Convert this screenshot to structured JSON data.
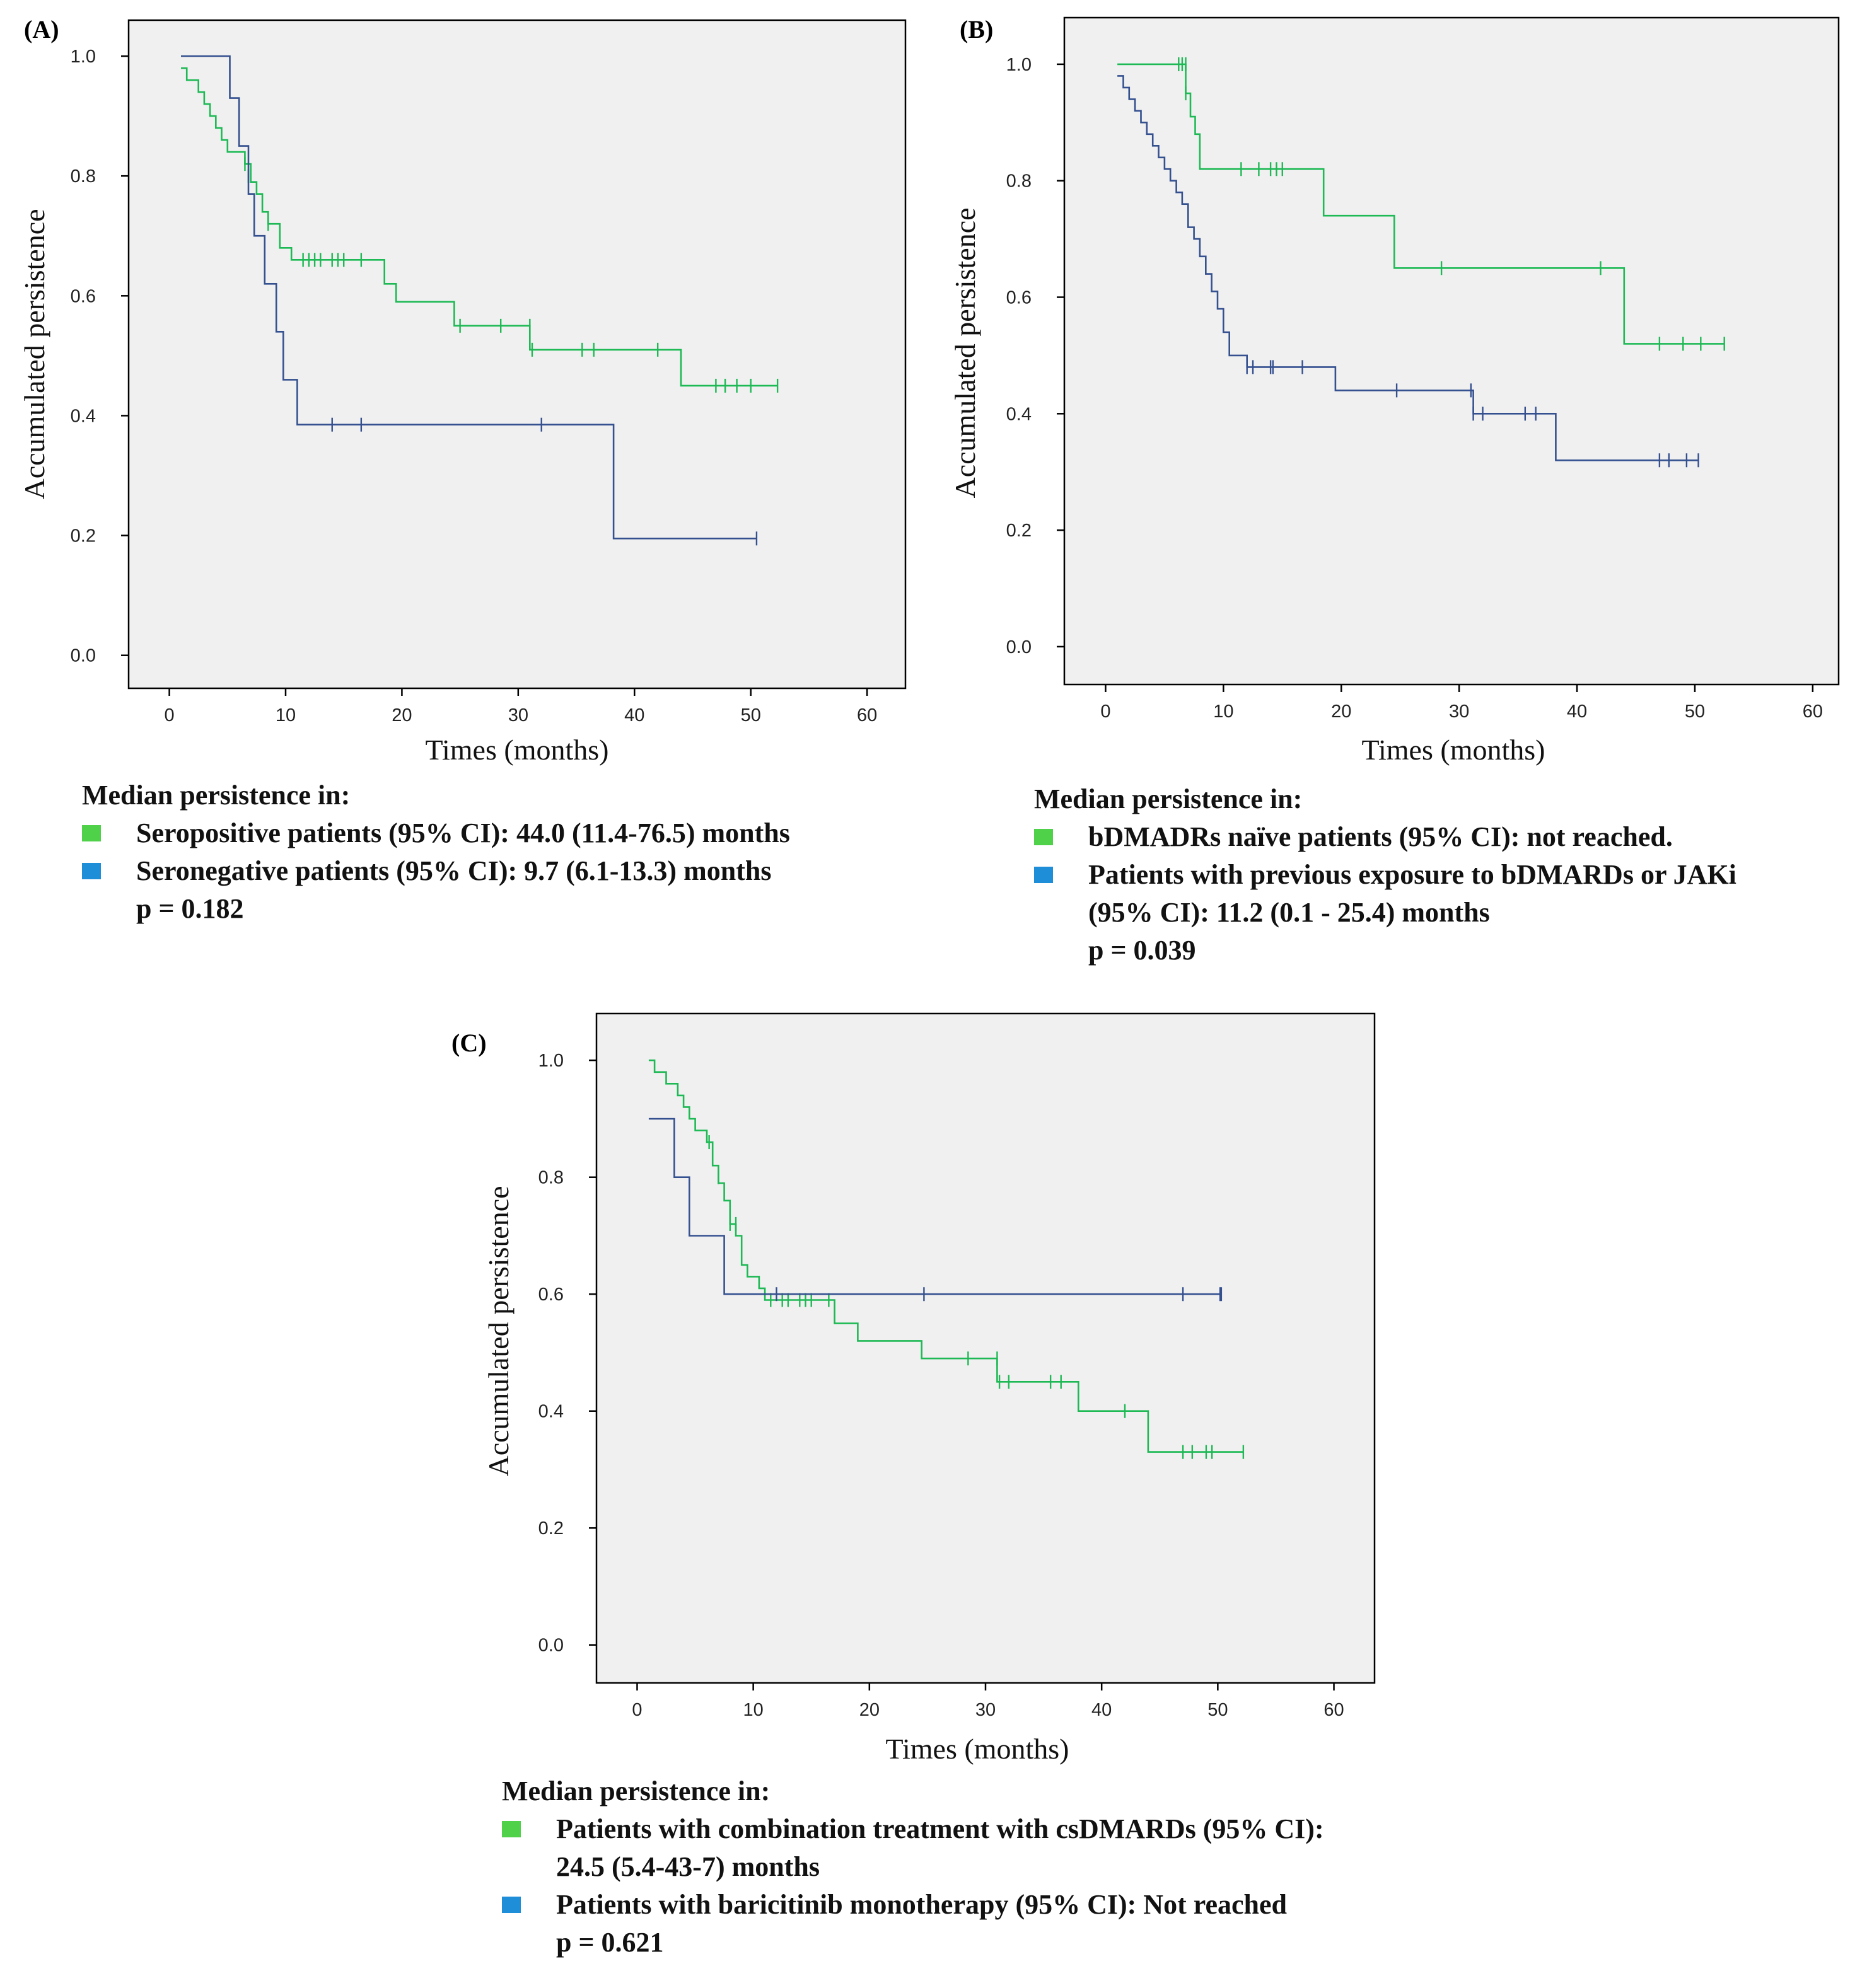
{
  "colors": {
    "green": "#1db954",
    "blue": "#34508f",
    "legend_green": "#4fd14a",
    "legend_blue": "#1e8ed8"
  },
  "panels": [
    {
      "label": "(A)",
      "legend": {
        "heading": "Median persistence in:",
        "entries": [
          {
            "color": "legend_green",
            "lines": [
              "Seropositive patients (95% CI): 44.0 (11.4-76.5) months"
            ]
          },
          {
            "color": "legend_blue",
            "lines": [
              "Seronegative patients (95% CI): 9.7 (6.1-13.3) months"
            ]
          }
        ],
        "pvalue": "p = 0.182"
      }
    },
    {
      "label": "(B)",
      "legend": {
        "heading": "Median persistence in:",
        "entries": [
          {
            "color": "legend_green",
            "lines": [
              "bDMADRs naïve patients (95% CI): not reached."
            ]
          },
          {
            "color": "legend_blue",
            "lines": [
              "Patients with previous exposure to bDMARDs or JAKi",
              "(95% CI): 11.2 (0.1 - 25.4) months"
            ]
          }
        ],
        "pvalue": "p = 0.039"
      }
    },
    {
      "label": "(C)",
      "legend": {
        "heading": "Median persistence in:",
        "entries": [
          {
            "color": "legend_green",
            "lines": [
              "Patients with combination treatment with csDMARDs (95% CI):",
              "24.5 (5.4-43-7) months"
            ]
          },
          {
            "color": "legend_blue",
            "lines": [
              "Patients with baricitinib monotherapy (95% CI): Not reached"
            ]
          }
        ],
        "pvalue": "p = 0.621"
      }
    }
  ],
  "chart_data": [
    {
      "type": "line",
      "title": "(A)",
      "xlabel": "Times (months)",
      "ylabel": "Accumulated persistence",
      "xlim": [
        -3.5,
        63.3
      ],
      "ylim": [
        -0.055,
        1.06
      ],
      "xticks": [
        0,
        10,
        20,
        30,
        40,
        50,
        60
      ],
      "yticks": [
        0.0,
        0.2,
        0.4,
        0.6,
        0.8,
        1.0
      ],
      "x_tick_labels": [
        "0",
        "10",
        "20",
        "30",
        "40",
        "50",
        "60"
      ],
      "y_tick_labels": [
        "0.0",
        "0.2",
        "0.4",
        "0.6",
        "0.8",
        "1.0"
      ],
      "series": [
        {
          "name": "Seropositive",
          "color": "green",
          "steps": [
            [
              1,
              0.98
            ],
            [
              1.5,
              0.96
            ],
            [
              2.5,
              0.94
            ],
            [
              3,
              0.92
            ],
            [
              3.5,
              0.9
            ],
            [
              4,
              0.88
            ],
            [
              4.5,
              0.86
            ],
            [
              5,
              0.84
            ],
            [
              6.5,
              0.82
            ],
            [
              7,
              0.79
            ],
            [
              7.5,
              0.77
            ],
            [
              8,
              0.74
            ],
            [
              8.5,
              0.72
            ],
            [
              9.5,
              0.68
            ],
            [
              10.5,
              0.66
            ],
            [
              18.5,
              0.62
            ],
            [
              19.5,
              0.59
            ],
            [
              24.5,
              0.55
            ],
            [
              31,
              0.51
            ],
            [
              44,
              0.45
            ],
            [
              52.3,
              0.45
            ]
          ],
          "censored": [
            [
              6.5,
              0.82
            ],
            [
              6.8,
              0.8
            ],
            [
              8.5,
              0.72
            ],
            [
              11.5,
              0.66
            ],
            [
              12,
              0.66
            ],
            [
              12.5,
              0.66
            ],
            [
              13,
              0.66
            ],
            [
              14,
              0.66
            ],
            [
              14.5,
              0.66
            ],
            [
              15,
              0.66
            ],
            [
              16.5,
              0.66
            ],
            [
              25,
              0.55
            ],
            [
              28.5,
              0.55
            ],
            [
              31,
              0.55
            ],
            [
              31.2,
              0.51
            ],
            [
              35.5,
              0.51
            ],
            [
              36.5,
              0.51
            ],
            [
              42,
              0.51
            ],
            [
              47,
              0.45
            ],
            [
              47.8,
              0.45
            ],
            [
              48.8,
              0.45
            ],
            [
              50,
              0.45
            ],
            [
              52.3,
              0.45
            ]
          ]
        },
        {
          "name": "Seronegative",
          "color": "blue",
          "steps": [
            [
              1,
              1.0
            ],
            [
              5.2,
              0.93
            ],
            [
              6,
              0.85
            ],
            [
              6.8,
              0.77
            ],
            [
              7.3,
              0.7
            ],
            [
              8.2,
              0.62
            ],
            [
              9.2,
              0.54
            ],
            [
              9.8,
              0.46
            ],
            [
              11,
              0.385
            ],
            [
              38.2,
              0.195
            ],
            [
              50.5,
              0.195
            ]
          ],
          "censored": [
            [
              14,
              0.385
            ],
            [
              16.5,
              0.385
            ],
            [
              32,
              0.385
            ],
            [
              50.5,
              0.195
            ]
          ]
        }
      ]
    },
    {
      "type": "line",
      "title": "(B)",
      "xlabel": "Times (months)",
      "ylabel": "Accumulated persistence",
      "xlim": [
        -3.5,
        62.2
      ],
      "ylim": [
        -0.065,
        1.08
      ],
      "xticks": [
        0,
        10,
        20,
        30,
        40,
        50,
        60
      ],
      "yticks": [
        0.0,
        0.2,
        0.4,
        0.6,
        0.8,
        1.0
      ],
      "x_tick_labels": [
        "0",
        "10",
        "20",
        "30",
        "40",
        "50",
        "60"
      ],
      "y_tick_labels": [
        "0.0",
        "0.2",
        "0.4",
        "0.6",
        "0.8",
        "1.0"
      ],
      "series": [
        {
          "name": "bDMARDs naive",
          "color": "green",
          "steps": [
            [
              1,
              1.0
            ],
            [
              6.8,
              0.95
            ],
            [
              7.2,
              0.91
            ],
            [
              7.6,
              0.88
            ],
            [
              8,
              0.82
            ],
            [
              18.5,
              0.74
            ],
            [
              24.5,
              0.65
            ],
            [
              44,
              0.52
            ],
            [
              52.5,
              0.52
            ]
          ],
          "censored": [
            [
              6.2,
              1.0
            ],
            [
              6.5,
              1.0
            ],
            [
              6.8,
              1.0
            ],
            [
              6.8,
              0.95
            ],
            [
              11.5,
              0.82
            ],
            [
              13,
              0.82
            ],
            [
              14,
              0.82
            ],
            [
              14.5,
              0.82
            ],
            [
              15,
              0.82
            ],
            [
              28.5,
              0.65
            ],
            [
              42,
              0.65
            ],
            [
              47,
              0.52
            ],
            [
              49,
              0.52
            ],
            [
              50.5,
              0.52
            ],
            [
              52.5,
              0.52
            ]
          ]
        },
        {
          "name": "Previous bDMARDs or JAKi",
          "color": "blue",
          "steps": [
            [
              1,
              0.98
            ],
            [
              1.5,
              0.96
            ],
            [
              2,
              0.94
            ],
            [
              2.5,
              0.92
            ],
            [
              3,
              0.9
            ],
            [
              3.5,
              0.88
            ],
            [
              4,
              0.86
            ],
            [
              4.5,
              0.84
            ],
            [
              5,
              0.82
            ],
            [
              5.5,
              0.8
            ],
            [
              6,
              0.78
            ],
            [
              6.5,
              0.76
            ],
            [
              7,
              0.72
            ],
            [
              7.5,
              0.7
            ],
            [
              8,
              0.67
            ],
            [
              8.5,
              0.64
            ],
            [
              9,
              0.61
            ],
            [
              9.5,
              0.58
            ],
            [
              10,
              0.54
            ],
            [
              10.5,
              0.5
            ],
            [
              12,
              0.48
            ],
            [
              19.5,
              0.44
            ],
            [
              31.2,
              0.4
            ],
            [
              38.2,
              0.32
            ],
            [
              50.3,
              0.32
            ]
          ],
          "censored": [
            [
              12,
              0.48
            ],
            [
              12.5,
              0.48
            ],
            [
              14,
              0.48
            ],
            [
              14.2,
              0.48
            ],
            [
              16.7,
              0.48
            ],
            [
              24.7,
              0.44
            ],
            [
              31,
              0.44
            ],
            [
              31.2,
              0.4
            ],
            [
              32,
              0.4
            ],
            [
              35.6,
              0.4
            ],
            [
              36.5,
              0.4
            ],
            [
              47,
              0.32
            ],
            [
              47.8,
              0.32
            ],
            [
              49.3,
              0.32
            ],
            [
              50.3,
              0.32
            ]
          ]
        }
      ]
    },
    {
      "type": "line",
      "title": "(C)",
      "xlabel": "Times (months)",
      "ylabel": "Accumulated persistence",
      "xlim": [
        -3.5,
        63.5
      ],
      "ylim": [
        -0.065,
        1.08
      ],
      "xticks": [
        0,
        10,
        20,
        30,
        40,
        50,
        60
      ],
      "yticks": [
        0.0,
        0.2,
        0.4,
        0.6,
        0.8,
        1.0
      ],
      "x_tick_labels": [
        "0",
        "10",
        "20",
        "30",
        "40",
        "50",
        "60"
      ],
      "y_tick_labels": [
        "0.0",
        "0.2",
        "0.4",
        "0.6",
        "0.8",
        "1.0"
      ],
      "series": [
        {
          "name": "Combination with csDMARDs",
          "color": "green",
          "steps": [
            [
              1,
              1.0
            ],
            [
              1.5,
              0.98
            ],
            [
              2.5,
              0.96
            ],
            [
              3.5,
              0.94
            ],
            [
              4,
              0.92
            ],
            [
              4.5,
              0.9
            ],
            [
              5,
              0.88
            ],
            [
              6,
              0.86
            ],
            [
              6.5,
              0.82
            ],
            [
              7,
              0.79
            ],
            [
              7.5,
              0.76
            ],
            [
              8,
              0.72
            ],
            [
              8.5,
              0.7
            ],
            [
              9,
              0.65
            ],
            [
              9.5,
              0.63
            ],
            [
              10.5,
              0.61
            ],
            [
              11,
              0.59
            ],
            [
              17,
              0.55
            ],
            [
              19,
              0.52
            ],
            [
              24.5,
              0.49
            ],
            [
              31,
              0.45
            ],
            [
              38,
              0.4
            ],
            [
              44,
              0.33
            ],
            [
              52.2,
              0.33
            ]
          ],
          "censored": [
            [
              6.2,
              0.86
            ],
            [
              6.5,
              0.84
            ],
            [
              7,
              0.8
            ],
            [
              8,
              0.72
            ],
            [
              8.5,
              0.72
            ],
            [
              11.5,
              0.59
            ],
            [
              12.5,
              0.59
            ],
            [
              13,
              0.59
            ],
            [
              14,
              0.59
            ],
            [
              14.5,
              0.59
            ],
            [
              15,
              0.59
            ],
            [
              16.5,
              0.59
            ],
            [
              28.5,
              0.49
            ],
            [
              31,
              0.49
            ],
            [
              31.2,
              0.45
            ],
            [
              32,
              0.45
            ],
            [
              35.6,
              0.45
            ],
            [
              36.5,
              0.45
            ],
            [
              42,
              0.4
            ],
            [
              47,
              0.33
            ],
            [
              47.8,
              0.33
            ],
            [
              49,
              0.33
            ],
            [
              49.5,
              0.33
            ],
            [
              52.2,
              0.33
            ]
          ]
        },
        {
          "name": "Baricitinib monotherapy",
          "color": "blue",
          "steps": [
            [
              1,
              0.9
            ],
            [
              3.2,
              0.8
            ],
            [
              4.5,
              0.7
            ],
            [
              7.5,
              0.6
            ],
            [
              50.3,
              0.6
            ]
          ],
          "censored": [
            [
              12,
              0.6
            ],
            [
              24.7,
              0.6
            ],
            [
              47,
              0.6
            ],
            [
              50.2,
              0.6
            ],
            [
              50.3,
              0.6
            ]
          ]
        }
      ]
    }
  ]
}
